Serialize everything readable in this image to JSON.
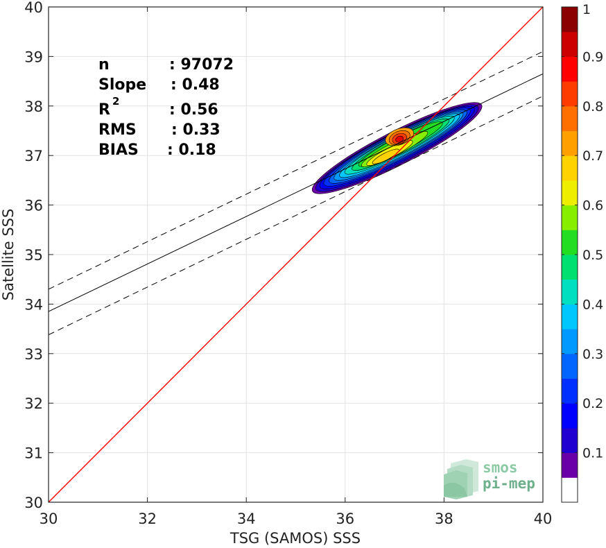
{
  "chart_data": {
    "type": "heatmap",
    "xlabel": "TSG (SAMOS) SSS",
    "ylabel": "Satellite SSS",
    "xlim": [
      30,
      40
    ],
    "ylim": [
      30,
      40
    ],
    "xticks": [
      30,
      32,
      34,
      36,
      38,
      40
    ],
    "yticks": [
      30,
      31,
      32,
      33,
      34,
      35,
      36,
      37,
      38,
      39,
      40
    ],
    "grid": true,
    "stats": [
      {
        "key": "n",
        "value": ": 97072"
      },
      {
        "key": "Slope",
        "value": ": 0.48"
      },
      {
        "key": "R",
        "sup": "2",
        "value": ": 0.56"
      },
      {
        "key": "RMS",
        "value": ": 0.33"
      },
      {
        "key": "BIAS",
        "value": ": 0.18"
      }
    ],
    "lines": {
      "identity": {
        "x": [
          30,
          40
        ],
        "y": [
          30,
          40
        ],
        "color": "#ff0000"
      },
      "fit": {
        "x": [
          30,
          40
        ],
        "y": [
          33.85,
          38.65
        ],
        "color": "#000000"
      },
      "fit_upper": {
        "x": [
          30,
          40
        ],
        "y": [
          34.3,
          39.1
        ],
        "color": "#000000",
        "dash": true
      },
      "fit_lower": {
        "x": [
          30,
          40
        ],
        "y": [
          33.38,
          38.2
        ],
        "color": "#000000",
        "dash": true
      }
    },
    "density_contours": [
      {
        "level": 0.05,
        "color": "#6a00a8",
        "cx": 37.05,
        "cy": 37.15,
        "rx": 1.92,
        "ry": 0.34,
        "rot": 27
      },
      {
        "level": 0.1,
        "color": "#1f00d0",
        "cx": 37.05,
        "cy": 37.15,
        "rx": 1.84,
        "ry": 0.31,
        "rot": 27
      },
      {
        "level": 0.15,
        "color": "#0000ff",
        "cx": 37.05,
        "cy": 37.16,
        "rx": 1.75,
        "ry": 0.29,
        "rot": 27
      },
      {
        "level": 0.2,
        "color": "#0030ff",
        "cx": 37.05,
        "cy": 37.17,
        "rx": 1.66,
        "ry": 0.27,
        "rot": 27
      },
      {
        "level": 0.25,
        "color": "#0066ff",
        "cx": 37.07,
        "cy": 37.18,
        "rx": 1.56,
        "ry": 0.25,
        "rot": 27
      },
      {
        "level": 0.3,
        "color": "#0099ff",
        "cx": 37.08,
        "cy": 37.19,
        "rx": 1.46,
        "ry": 0.23,
        "rot": 27
      },
      {
        "level": 0.35,
        "color": "#00c8ff",
        "cx": 37.1,
        "cy": 37.2,
        "rx": 1.36,
        "ry": 0.21,
        "rot": 27
      },
      {
        "level": 0.4,
        "color": "#00e0c0",
        "cx": 37.1,
        "cy": 37.21,
        "rx": 1.24,
        "ry": 0.19,
        "rot": 27
      },
      {
        "level": 0.45,
        "color": "#00e070",
        "cx": 37.12,
        "cy": 37.22,
        "rx": 1.1,
        "ry": 0.17,
        "rot": 27
      },
      {
        "level": 0.5,
        "color": "#22dd22",
        "cx": 37.12,
        "cy": 37.23,
        "rx": 0.95,
        "ry": 0.15,
        "rot": 27
      },
      {
        "level": 0.55,
        "color": "#88ee00",
        "cx": 37.0,
        "cy": 37.13,
        "rx": 0.75,
        "ry": 0.13,
        "rot": 27
      },
      {
        "level": 0.6,
        "color": "#eeee00",
        "cx": 36.9,
        "cy": 37.05,
        "rx": 0.52,
        "ry": 0.1,
        "rot": 27
      },
      {
        "level": 0.65,
        "color": "#ffd200",
        "cx": 36.82,
        "cy": 36.98,
        "rx": 0.3,
        "ry": 0.07,
        "rot": 27
      },
      {
        "level": 0.7,
        "color": "#ffa000",
        "cx": 37.1,
        "cy": 37.38,
        "rx": 0.3,
        "ry": 0.16,
        "rot": 20
      },
      {
        "level": 0.75,
        "color": "#ff7000",
        "cx": 37.1,
        "cy": 37.36,
        "rx": 0.22,
        "ry": 0.13,
        "rot": 20
      },
      {
        "level": 0.8,
        "color": "#ff3c00",
        "cx": 37.1,
        "cy": 37.34,
        "rx": 0.15,
        "ry": 0.1,
        "rot": 20
      },
      {
        "level": 0.85,
        "color": "#e00000",
        "cx": 37.1,
        "cy": 37.33,
        "rx": 0.08,
        "ry": 0.06,
        "rot": 20
      }
    ],
    "colorbar": {
      "ticks": [
        "0.1",
        "0.2",
        "0.3",
        "0.4",
        "0.5",
        "0.6",
        "0.7",
        "0.8",
        "0.9",
        "1"
      ],
      "tick_values": [
        0.1,
        0.2,
        0.3,
        0.4,
        0.5,
        0.6,
        0.7,
        0.8,
        0.9,
        1.0
      ],
      "range": [
        0,
        1
      ],
      "colors": [
        "#ffffff",
        "#6a00a8",
        "#1f00d0",
        "#0000ff",
        "#0030ff",
        "#0066ff",
        "#0099ff",
        "#00c8ff",
        "#00e0c0",
        "#00e070",
        "#22dd22",
        "#88ee00",
        "#eeee00",
        "#ffd200",
        "#ffa000",
        "#ff7000",
        "#ff3c00",
        "#ff0000",
        "#cc0000",
        "#8b0000"
      ]
    }
  },
  "logo": {
    "line1": "smos",
    "line2": "pi-mep"
  }
}
